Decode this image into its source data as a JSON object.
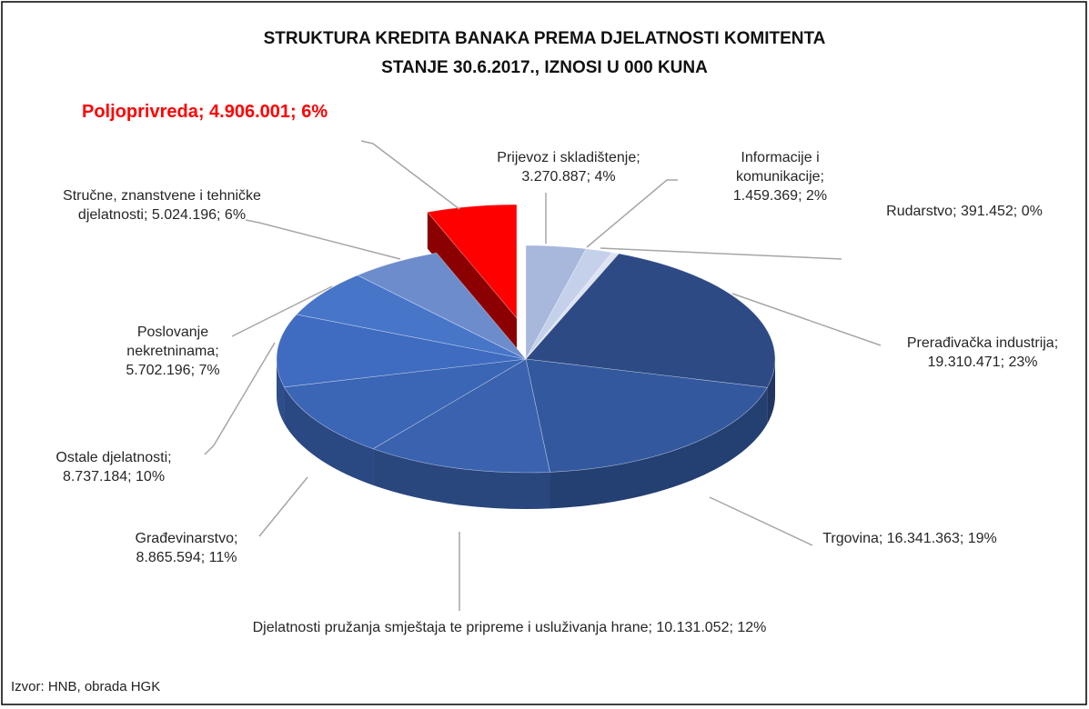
{
  "chart_data": {
    "type": "pie",
    "title": "STRUKTURA KREDITA BANAKA PREMA DJELATNOSTI KOMITENTA",
    "subtitle": "STANJE 30.6.2017., IZNOSI U 000 KUNA",
    "source": "Izvor: HNB, obrada HGK",
    "values": [
      3270887,
      1459369,
      391452,
      19310471,
      16341363,
      10131052,
      8865594,
      8737184,
      5702196,
      5024196,
      4906001
    ],
    "value_labels": [
      "Prijevoz i skladištenje; 3.270.887; 4%",
      "Informacije i komunikacije; 1.459.369; 2%",
      "Rudarstvo; 391.452; 0%",
      "Prerađivačka industrija; 19.310.471; 23%",
      "Trgovina; 16.341.363; 19%",
      "Djelatnosti pružanja smještaja te pripreme i usluživanja hrane; 10.131.052; 12%",
      "Građevinarstvo; 8.865.594; 11%",
      "Ostale djelatnosti; 8.737.184; 10%",
      "Poslovanje nekretninama; 5.702.196; 7%",
      "Stručne, znanstvene i tehničke djelatnosti; 5.024.196; 6%",
      "Poljoprivreda; 4.906.001; 6%"
    ],
    "colors": [
      "#a8b8dc",
      "#c5d0ea",
      "#dde3f2",
      "#2e4a85",
      "#33589e",
      "#3a62ae",
      "#3b65b5",
      "#3f6cc0",
      "#4775c8",
      "#6d8ccc",
      "#ff0000"
    ],
    "explode": [
      10
    ],
    "three_d": true
  }
}
